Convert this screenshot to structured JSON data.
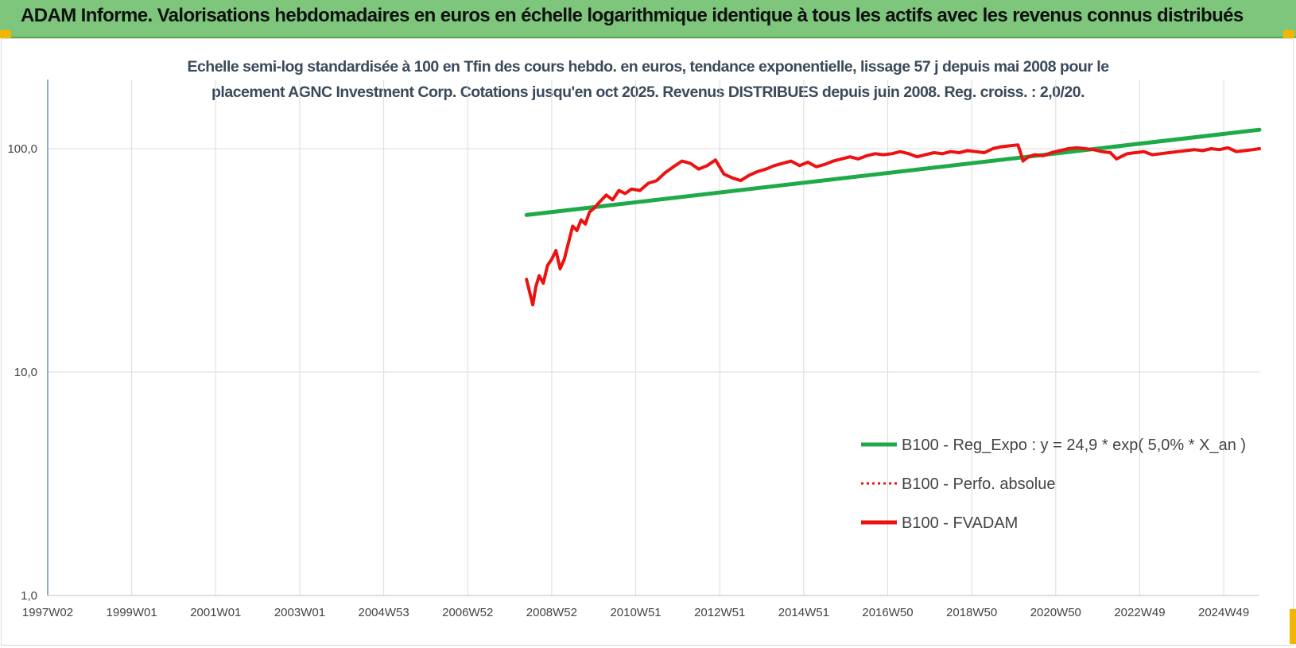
{
  "banner": {
    "title": "ADAM Informe. Valorisations hebdomadaires en euros en échelle logarithmique identique à tous les actifs avec les revenus connus distribués",
    "background": "#7dc67b"
  },
  "chart_data": {
    "type": "line",
    "title_line1": "Echelle semi-log standardisée à 100 en Tfin des cours hebdo. en euros, tendance exponentielle, lissage 57 j depuis mai 2008 pour le",
    "title_line2": "placement AGNC Investment Corp. Cotations jusqu'en oct 2025. Revenus DISTRIBUES depuis juin 2008. Reg. croiss. : 2,0/20.",
    "y_scale": "log",
    "ylim": [
      1,
      200
    ],
    "xlim": [
      1997.0,
      2025.85
    ],
    "grid": true,
    "legend_position": "right",
    "y_ticks": [
      {
        "value": 100,
        "label": "100,0"
      },
      {
        "value": 10,
        "label": "10,0"
      },
      {
        "value": 1,
        "label": "1,0"
      }
    ],
    "x_ticks": [
      {
        "value": 1997.0,
        "label": "1997W02"
      },
      {
        "value": 1999.0,
        "label": "1999W01"
      },
      {
        "value": 2001.0,
        "label": "2001W01"
      },
      {
        "value": 2003.0,
        "label": "2003W01"
      },
      {
        "value": 2005.0,
        "label": "2004W53"
      },
      {
        "value": 2007.0,
        "label": "2006W52"
      },
      {
        "value": 2009.0,
        "label": "2008W52"
      },
      {
        "value": 2011.0,
        "label": "2010W51"
      },
      {
        "value": 2013.0,
        "label": "2012W51"
      },
      {
        "value": 2015.0,
        "label": "2014W51"
      },
      {
        "value": 2017.0,
        "label": "2016W50"
      },
      {
        "value": 2019.0,
        "label": "2018W50"
      },
      {
        "value": 2021.0,
        "label": "2020W50"
      },
      {
        "value": 2023.0,
        "label": "2022W49"
      },
      {
        "value": 2025.0,
        "label": "2024W49"
      }
    ],
    "series": [
      {
        "name": "B100 - Reg_Expo : y = 24,9 * exp( 5,0% *  X_an )",
        "color": "#1faa4a",
        "style": "solid",
        "x": [
          2008.4,
          2025.85
        ],
        "y": [
          50.5,
          121.5
        ]
      },
      {
        "name": "B100 - Perfo. absolue",
        "color": "#ee1111",
        "style": "dotted",
        "x": [],
        "y": []
      },
      {
        "name": "B100 - FVADAM",
        "color": "#ee1111",
        "style": "solid",
        "x": [
          2008.4,
          2008.47,
          2008.55,
          2008.62,
          2008.7,
          2008.8,
          2008.9,
          2009.0,
          2009.1,
          2009.2,
          2009.3,
          2009.4,
          2009.5,
          2009.6,
          2009.7,
          2009.8,
          2009.9,
          2010.0,
          2010.15,
          2010.3,
          2010.45,
          2010.6,
          2010.75,
          2010.9,
          2011.1,
          2011.3,
          2011.5,
          2011.7,
          2011.9,
          2012.1,
          2012.3,
          2012.5,
          2012.7,
          2012.9,
          2013.1,
          2013.3,
          2013.5,
          2013.7,
          2013.9,
          2014.1,
          2014.3,
          2014.5,
          2014.7,
          2014.9,
          2015.1,
          2015.3,
          2015.5,
          2015.7,
          2015.9,
          2016.1,
          2016.3,
          2016.5,
          2016.7,
          2016.9,
          2017.1,
          2017.3,
          2017.5,
          2017.7,
          2017.9,
          2018.1,
          2018.3,
          2018.5,
          2018.7,
          2018.9,
          2019.1,
          2019.3,
          2019.5,
          2019.7,
          2019.9,
          2020.1,
          2020.17,
          2020.22,
          2020.35,
          2020.5,
          2020.7,
          2020.9,
          2021.1,
          2021.3,
          2021.5,
          2021.7,
          2021.9,
          2022.1,
          2022.3,
          2022.45,
          2022.55,
          2022.7,
          2022.9,
          2023.1,
          2023.3,
          2023.5,
          2023.7,
          2023.9,
          2024.1,
          2024.3,
          2024.5,
          2024.7,
          2024.9,
          2025.1,
          2025.3,
          2025.5,
          2025.7,
          2025.85
        ],
        "y": [
          26,
          23,
          20,
          24,
          27,
          25,
          30,
          32,
          35,
          29,
          32,
          38,
          45,
          43,
          48,
          46,
          52,
          54,
          58,
          62,
          59,
          65,
          63,
          66,
          65,
          70,
          72,
          78,
          83,
          88,
          86,
          81,
          84,
          89,
          77,
          74,
          72,
          76,
          79,
          81,
          84,
          86,
          88,
          84,
          87,
          83,
          85,
          88,
          90,
          92,
          90,
          93,
          95,
          94,
          95,
          97,
          95,
          92,
          94,
          96,
          95,
          97,
          96,
          98,
          97,
          96,
          100,
          102,
          103,
          104,
          95,
          88,
          92,
          94,
          93,
          96,
          98,
          100,
          101,
          100,
          99,
          97,
          96,
          90,
          92,
          95,
          96,
          97,
          94,
          95,
          96,
          97,
          98,
          99,
          98,
          100,
          99,
          101,
          97,
          98,
          99,
          100
        ]
      }
    ]
  }
}
